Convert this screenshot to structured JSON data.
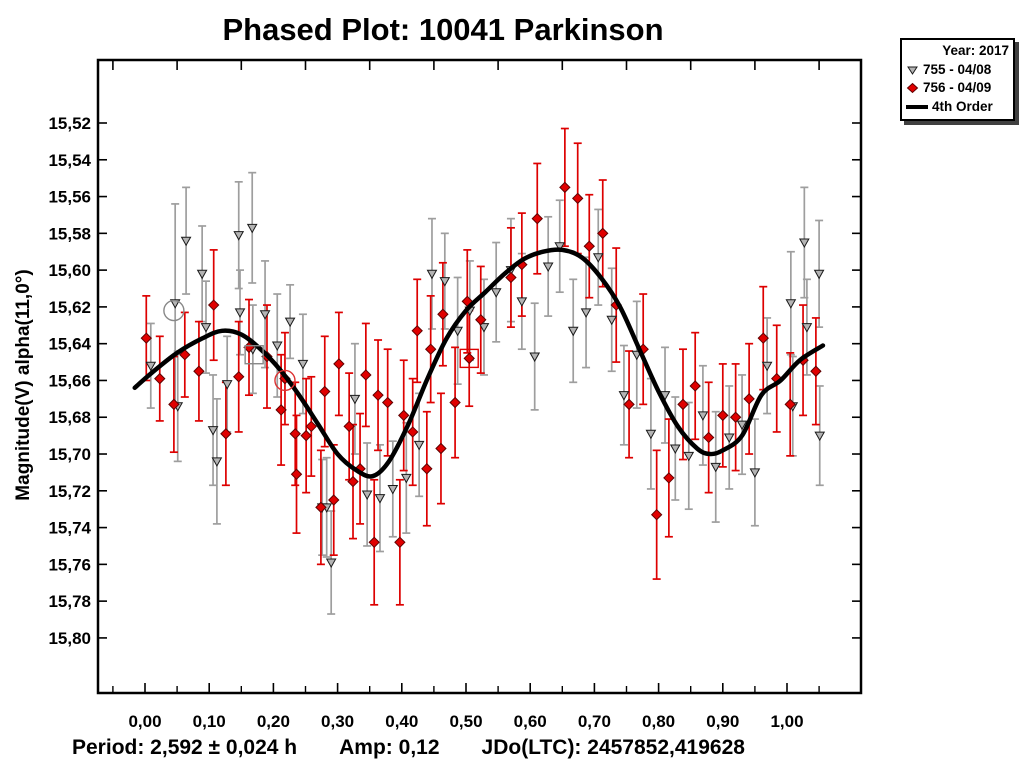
{
  "title": "Phased Plot: 10041 Parkinson",
  "legend": {
    "year": "Year: 2017",
    "series": [
      {
        "marker": "triangle-down",
        "label": "755 - 04/08"
      },
      {
        "marker": "diamond",
        "label": "756 - 04/09"
      },
      {
        "marker": "line",
        "label": "4th Order"
      }
    ]
  },
  "footer": {
    "period": "Period: 2,592 ± 0,024 h",
    "amp": "Amp: 0,12",
    "jdo": "JDo(LTC): 2457852,419628"
  },
  "chart_data": {
    "type": "scatter",
    "title": "Phased Plot: 10041 Parkinson",
    "xlabel": "",
    "ylabel": "Magnitude(V) alpha(11,0°)",
    "x_axis": {
      "range": [
        -0.073,
        1.115
      ],
      "ticks": [
        0.0,
        0.1,
        0.2,
        0.3,
        0.4,
        0.5,
        0.6,
        0.7,
        0.8,
        0.9,
        1.0
      ],
      "tick_labels": [
        "0,00",
        "0,10",
        "0,20",
        "0,30",
        "0,40",
        "0,50",
        "0,60",
        "0,70",
        "0,80",
        "0,90",
        "1,00"
      ],
      "minor_ticks": [
        -0.05,
        0.05,
        0.15,
        0.25,
        0.35,
        0.45,
        0.55,
        0.65,
        0.75,
        0.85,
        0.95,
        1.05
      ]
    },
    "y_axis": {
      "range": [
        15.486,
        15.83
      ],
      "inverted": true,
      "ticks": [
        15.52,
        15.54,
        15.56,
        15.58,
        15.6,
        15.62,
        15.64,
        15.66,
        15.68,
        15.7,
        15.72,
        15.74,
        15.76,
        15.78,
        15.8
      ],
      "tick_labels": [
        "15,52",
        "15,54",
        "15,56",
        "15,58",
        "15,60",
        "15,62",
        "15,64",
        "15,66",
        "15,68",
        "15,70",
        "15,72",
        "15,74",
        "15,76",
        "15,78",
        "15,80"
      ]
    },
    "colors": {
      "s755_fill": "#b4b4b4",
      "s755_edge": "#1a1a1a",
      "s755_bar": "#9e9e9e",
      "s756_fill": "#e00000",
      "s756_edge": "#600000",
      "s756_bar": "#dd0000",
      "fit_line": "#000000"
    },
    "series": [
      {
        "name": "755 - 04/08",
        "marker": "triangle-down",
        "points": [
          [
            0.009,
            15.652,
            0.023
          ],
          [
            0.047,
            15.618,
            0.054
          ],
          [
            0.051,
            15.674,
            0.03
          ],
          [
            0.064,
            15.584,
            0.029
          ],
          [
            0.089,
            15.602,
            0.026
          ],
          [
            0.095,
            15.631,
            0.025
          ],
          [
            0.106,
            15.687,
            0.03
          ],
          [
            0.112,
            15.704,
            0.034
          ],
          [
            0.128,
            15.662,
            0.026
          ],
          [
            0.146,
            15.581,
            0.029
          ],
          [
            0.148,
            15.623,
            0.023
          ],
          [
            0.167,
            15.577,
            0.03
          ],
          [
            0.168,
            15.643,
            0.024
          ],
          [
            0.187,
            15.624,
            0.029
          ],
          [
            0.206,
            15.641,
            0.028
          ],
          [
            0.226,
            15.628,
            0.02
          ],
          [
            0.246,
            15.651,
            0.027
          ],
          [
            0.276,
            15.729,
            0.026
          ],
          [
            0.283,
            15.729,
            0.027
          ],
          [
            0.29,
            15.759,
            0.028
          ],
          [
            0.327,
            15.67,
            0.03
          ],
          [
            0.346,
            15.722,
            0.028
          ],
          [
            0.366,
            15.724,
            0.029
          ],
          [
            0.386,
            15.719,
            0.026
          ],
          [
            0.407,
            15.713,
            0.03
          ],
          [
            0.427,
            15.695,
            0.028
          ],
          [
            0.447,
            15.602,
            0.03
          ],
          [
            0.467,
            15.606,
            0.026
          ],
          [
            0.487,
            15.633,
            0.029
          ],
          [
            0.506,
            15.622,
            0.027
          ],
          [
            0.528,
            15.631,
            0.026
          ],
          [
            0.547,
            15.612,
            0.027
          ],
          [
            0.57,
            15.6,
            0.028
          ],
          [
            0.587,
            15.617,
            0.026
          ],
          [
            0.607,
            15.647,
            0.029
          ],
          [
            0.628,
            15.598,
            0.027
          ],
          [
            0.646,
            15.587,
            0.025
          ],
          [
            0.667,
            15.633,
            0.028
          ],
          [
            0.687,
            15.623,
            0.03
          ],
          [
            0.706,
            15.593,
            0.026
          ],
          [
            0.727,
            15.627,
            0.028
          ],
          [
            0.746,
            15.668,
            0.027
          ],
          [
            0.766,
            15.646,
            0.029
          ],
          [
            0.788,
            15.689,
            0.03
          ],
          [
            0.81,
            15.668,
            0.026
          ],
          [
            0.826,
            15.697,
            0.028
          ],
          [
            0.847,
            15.701,
            0.029
          ],
          [
            0.869,
            15.679,
            0.027
          ],
          [
            0.889,
            15.707,
            0.03
          ],
          [
            0.91,
            15.691,
            0.028
          ],
          [
            0.93,
            15.684,
            0.027
          ],
          [
            0.95,
            15.71,
            0.029
          ],
          [
            0.969,
            15.652,
            0.026
          ],
          [
            1.006,
            15.618,
            0.028
          ],
          [
            1.009,
            15.674,
            0.027
          ],
          [
            1.027,
            15.585,
            0.03
          ],
          [
            1.031,
            15.631,
            0.026
          ],
          [
            1.05,
            15.602,
            0.029
          ],
          [
            1.051,
            15.69,
            0.027
          ]
        ]
      },
      {
        "name": "756 - 04/09",
        "marker": "diamond",
        "points": [
          [
            0.002,
            15.637,
            0.023
          ],
          [
            0.023,
            15.659,
            0.023
          ],
          [
            0.045,
            15.673,
            0.026
          ],
          [
            0.062,
            15.646,
            0.023
          ],
          [
            0.084,
            15.655,
            0.027
          ],
          [
            0.107,
            15.619,
            0.03
          ],
          [
            0.126,
            15.689,
            0.028
          ],
          [
            0.146,
            15.658,
            0.03
          ],
          [
            0.162,
            15.642,
            0.026
          ],
          [
            0.19,
            15.647,
            0.028
          ],
          [
            0.212,
            15.676,
            0.03
          ],
          [
            0.218,
            15.659,
            0.025
          ],
          [
            0.234,
            15.689,
            0.028
          ],
          [
            0.236,
            15.711,
            0.032
          ],
          [
            0.251,
            15.69,
            0.031
          ],
          [
            0.259,
            15.685,
            0.027
          ],
          [
            0.274,
            15.729,
            0.031
          ],
          [
            0.28,
            15.666,
            0.03
          ],
          [
            0.294,
            15.725,
            0.03
          ],
          [
            0.302,
            15.651,
            0.028
          ],
          [
            0.318,
            15.685,
            0.029
          ],
          [
            0.324,
            15.715,
            0.031
          ],
          [
            0.335,
            15.708,
            0.03
          ],
          [
            0.344,
            15.657,
            0.028
          ],
          [
            0.357,
            15.748,
            0.034
          ],
          [
            0.363,
            15.668,
            0.03
          ],
          [
            0.378,
            15.672,
            0.029
          ],
          [
            0.397,
            15.748,
            0.034
          ],
          [
            0.403,
            15.679,
            0.03
          ],
          [
            0.417,
            15.688,
            0.029
          ],
          [
            0.424,
            15.633,
            0.028
          ],
          [
            0.439,
            15.708,
            0.031
          ],
          [
            0.445,
            15.643,
            0.029
          ],
          [
            0.461,
            15.697,
            0.03
          ],
          [
            0.464,
            15.624,
            0.028
          ],
          [
            0.483,
            15.672,
            0.03
          ],
          [
            0.502,
            15.617,
            0.028
          ],
          [
            0.505,
            15.648,
            0.026
          ],
          [
            0.523,
            15.627,
            0.029
          ],
          [
            0.57,
            15.604,
            0.027
          ],
          [
            0.587,
            15.597,
            0.028
          ],
          [
            0.611,
            15.572,
            0.03
          ],
          [
            0.654,
            15.555,
            0.032
          ],
          [
            0.674,
            15.561,
            0.03
          ],
          [
            0.692,
            15.587,
            0.028
          ],
          [
            0.713,
            15.58,
            0.029
          ],
          [
            0.734,
            15.619,
            0.031
          ],
          [
            0.754,
            15.673,
            0.029
          ],
          [
            0.776,
            15.643,
            0.03
          ],
          [
            0.797,
            15.733,
            0.035
          ],
          [
            0.816,
            15.713,
            0.032
          ],
          [
            0.838,
            15.673,
            0.03
          ],
          [
            0.857,
            15.663,
            0.029
          ],
          [
            0.878,
            15.691,
            0.03
          ],
          [
            0.9,
            15.679,
            0.028
          ],
          [
            0.92,
            15.68,
            0.029
          ],
          [
            0.941,
            15.67,
            0.03
          ],
          [
            0.963,
            15.637,
            0.028
          ],
          [
            0.984,
            15.659,
            0.029
          ],
          [
            1.005,
            15.673,
            0.028
          ],
          [
            1.025,
            15.649,
            0.03
          ],
          [
            1.045,
            15.655,
            0.029
          ]
        ]
      },
      {
        "name": "4th Order",
        "marker": "line",
        "points": [
          [
            -0.016,
            15.664
          ],
          [
            0.01,
            15.656
          ],
          [
            0.05,
            15.645
          ],
          [
            0.09,
            15.637
          ],
          [
            0.12,
            15.633
          ],
          [
            0.15,
            15.635
          ],
          [
            0.18,
            15.643
          ],
          [
            0.21,
            15.654
          ],
          [
            0.24,
            15.668
          ],
          [
            0.27,
            15.684
          ],
          [
            0.3,
            15.7
          ],
          [
            0.33,
            15.709
          ],
          [
            0.355,
            15.712
          ],
          [
            0.38,
            15.704
          ],
          [
            0.41,
            15.684
          ],
          [
            0.44,
            15.659
          ],
          [
            0.47,
            15.637
          ],
          [
            0.5,
            15.622
          ],
          [
            0.53,
            15.612
          ],
          [
            0.56,
            15.602
          ],
          [
            0.59,
            15.594
          ],
          [
            0.62,
            15.59
          ],
          [
            0.65,
            15.589
          ],
          [
            0.68,
            15.593
          ],
          [
            0.71,
            15.604
          ],
          [
            0.74,
            15.62
          ],
          [
            0.77,
            15.643
          ],
          [
            0.8,
            15.666
          ],
          [
            0.83,
            15.685
          ],
          [
            0.86,
            15.697
          ],
          [
            0.88,
            15.7
          ],
          [
            0.9,
            15.698
          ],
          [
            0.93,
            15.69
          ],
          [
            0.96,
            15.668
          ],
          [
            0.99,
            15.66
          ],
          [
            1.02,
            15.649
          ],
          [
            1.056,
            15.641
          ]
        ]
      }
    ],
    "annotations": [
      {
        "shape": "circle",
        "x": 0.045,
        "y": 15.622,
        "color": "#888888"
      },
      {
        "shape": "square",
        "x": 0.17,
        "y": 15.646,
        "color": "#888888"
      },
      {
        "shape": "circle",
        "x": 0.218,
        "y": 15.66,
        "color": "#dd3333"
      },
      {
        "shape": "square",
        "x": 0.505,
        "y": 15.648,
        "color": "#dd0000"
      }
    ],
    "legend_position": "top-right-outside"
  }
}
